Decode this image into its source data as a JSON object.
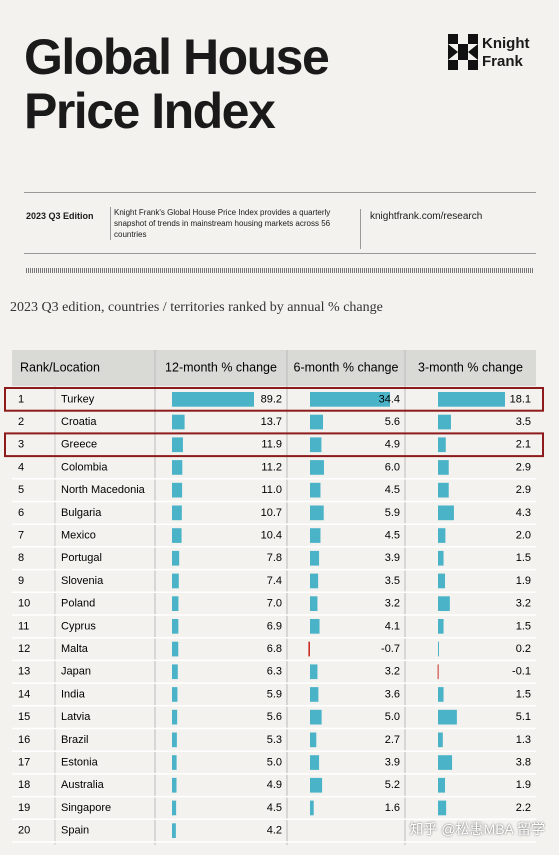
{
  "header": {
    "title_lines": [
      "Global House",
      "Price Index"
    ],
    "logo": [
      "Knight",
      "Frank"
    ],
    "edition": "2023 Q3 Edition",
    "description": "Knight Frank's Global House Price Index provides a quarterly snapshot of trends in mainstream housing markets across 56 countries",
    "url": "knightfrank.com/research"
  },
  "subtitle": "2023 Q3 edition, countries / territories ranked by annual % change",
  "table": {
    "columns": [
      "Rank/Location",
      "12-month % change",
      "6-month % change",
      "3-month % change"
    ],
    "highlighted_rows": [
      0,
      2
    ],
    "rows": [
      [
        1,
        "Turkey",
        89.2,
        34.4,
        18.1
      ],
      [
        2,
        "Croatia",
        13.7,
        5.6,
        3.5
      ],
      [
        3,
        "Greece",
        11.9,
        4.9,
        2.1
      ],
      [
        4,
        "Colombia",
        11.2,
        {
          "value": 6,
          "label": "6.0"
        },
        2.9
      ],
      [
        5,
        "North Macedonia",
        {
          "value": 11,
          "label": "11.0"
        },
        4.5,
        2.9
      ],
      [
        6,
        "Bulgaria",
        10.7,
        5.9,
        4.3
      ],
      [
        7,
        "Mexico",
        10.4,
        4.5,
        {
          "value": 2,
          "label": "2.0"
        }
      ],
      [
        8,
        "Portugal",
        7.8,
        3.9,
        1.5
      ],
      [
        9,
        "Slovenia",
        7.4,
        3.5,
        1.9
      ],
      [
        10,
        "Poland",
        {
          "value": 7,
          "label": "7.0"
        },
        3.2,
        3.2
      ],
      [
        11,
        "Cyprus",
        6.9,
        4.1,
        1.5
      ],
      [
        12,
        "Malta",
        6.8,
        -0.7,
        0.2
      ],
      [
        13,
        "Japan",
        6.3,
        3.2,
        -0.1
      ],
      [
        14,
        "India",
        5.9,
        3.6,
        1.5
      ],
      [
        15,
        "Latvia",
        5.6,
        {
          "value": 5,
          "label": "5.0"
        },
        5.1
      ],
      [
        16,
        "Brazil",
        5.3,
        2.7,
        1.3
      ],
      [
        17,
        "Estonia",
        {
          "value": 5,
          "label": "5.0"
        },
        3.9,
        3.8
      ],
      [
        18,
        "Australia",
        4.9,
        5.2,
        1.9
      ],
      [
        19,
        "Singapore",
        4.5,
        1.6,
        2.2
      ],
      [
        20,
        "Spain",
        4.2,
        null,
        null
      ]
    ]
  },
  "watermark": "知乎 @松惠MBA 留学"
}
